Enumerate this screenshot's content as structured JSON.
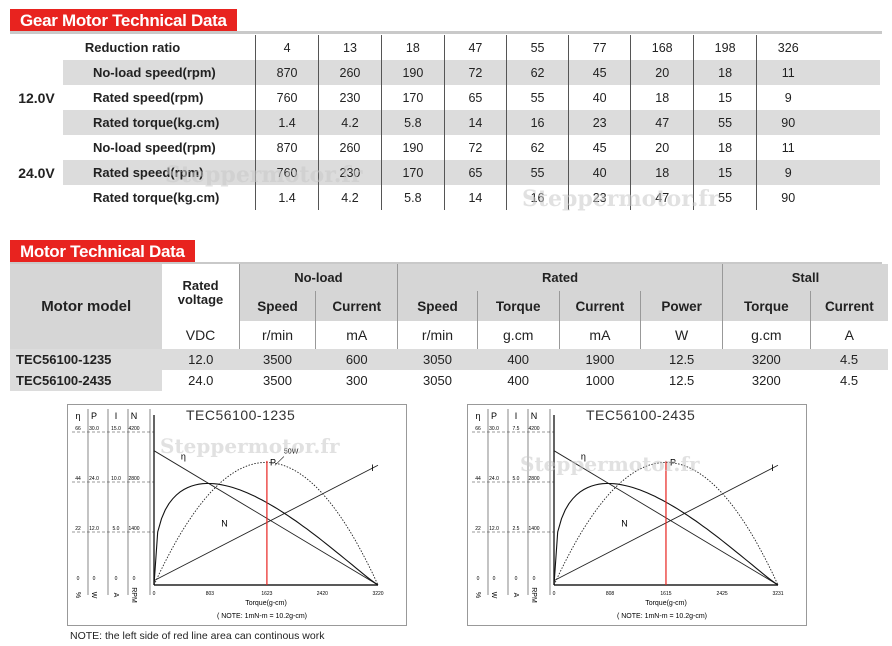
{
  "gear": {
    "title": "Gear Motor Technical Data",
    "ratio_label": "Reduction ratio",
    "ratios": [
      "4",
      "13",
      "18",
      "47",
      "55",
      "77",
      "168",
      "198",
      "326"
    ],
    "groups": [
      {
        "voltage": "12.0V",
        "rows": [
          {
            "label": "No-load speed(rpm)",
            "values": [
              "870",
              "260",
              "190",
              "72",
              "62",
              "45",
              "20",
              "18",
              "11"
            ]
          },
          {
            "label": "Rated speed(rpm)",
            "values": [
              "760",
              "230",
              "170",
              "65",
              "55",
              "40",
              "18",
              "15",
              "9"
            ]
          },
          {
            "label": "Rated torque(kg.cm)",
            "values": [
              "1.4",
              "4.2",
              "5.8",
              "14",
              "16",
              "23",
              "47",
              "55",
              "90"
            ]
          }
        ]
      },
      {
        "voltage": "24.0V",
        "rows": [
          {
            "label": "No-load speed(rpm)",
            "values": [
              "870",
              "260",
              "190",
              "72",
              "62",
              "45",
              "20",
              "18",
              "11"
            ]
          },
          {
            "label": "Rated speed(rpm)",
            "values": [
              "760",
              "230",
              "170",
              "65",
              "55",
              "40",
              "18",
              "15",
              "9"
            ]
          },
          {
            "label": "Rated torque(kg.cm)",
            "values": [
              "1.4",
              "4.2",
              "5.8",
              "14",
              "16",
              "23",
              "47",
              "55",
              "90"
            ]
          }
        ]
      }
    ]
  },
  "motor": {
    "title": "Motor Technical Data",
    "model_header": "Motor model",
    "rated_voltage_header": "Rated voltage",
    "groups": {
      "noload": "No-load",
      "rated": "Rated",
      "stall": "Stall"
    },
    "subheaders": [
      "Speed",
      "Current",
      "Speed",
      "Torque",
      "Current",
      "Power",
      "Torque",
      "Current"
    ],
    "units": [
      "VDC",
      "r/min",
      "mA",
      "r/min",
      "g.cm",
      "mA",
      "W",
      "g.cm",
      "A"
    ],
    "rows": [
      {
        "model": "TEC56100-1235",
        "values": [
          "12.0",
          "3500",
          "600",
          "3050",
          "400",
          "1900",
          "12.5",
          "3200",
          "4.5"
        ]
      },
      {
        "model": "TEC56100-2435",
        "values": [
          "24.0",
          "3500",
          "300",
          "3050",
          "400",
          "1000",
          "12.5",
          "3200",
          "4.5"
        ]
      }
    ]
  },
  "charts": [
    {
      "title": "TEC56100-1235",
      "col_headers": [
        "η",
        "P",
        "I",
        "N"
      ],
      "row_labels": [
        [
          "66",
          "30.0",
          "15.0",
          "4200"
        ],
        [
          "44",
          "24.0",
          "10.0",
          "2800"
        ],
        [
          "22",
          "12.0",
          "5.0",
          "1400"
        ],
        [
          "0",
          "0",
          "0",
          "0"
        ]
      ],
      "units": [
        "%",
        "W",
        "A",
        "RPM"
      ],
      "x_ticks": [
        "0",
        "803",
        "1623",
        "2420",
        "3220"
      ],
      "x_label": "Torque(g-cm)",
      "note": "( NOTE: 1mN-m = 10.2g-cm)",
      "curve_labels": {
        "eta": "η",
        "p": "P",
        "i": "I",
        "n": "N",
        "power": "50W"
      },
      "red_line_x": 1623,
      "x_max": 3220
    },
    {
      "title": "TEC56100-2435",
      "col_headers": [
        "η",
        "P",
        "I",
        "N"
      ],
      "row_labels": [
        [
          "66",
          "30.0",
          "7.5",
          "4200"
        ],
        [
          "44",
          "24.0",
          "5.0",
          "2800"
        ],
        [
          "22",
          "12.0",
          "2.5",
          "1400"
        ],
        [
          "0",
          "0",
          "0",
          "0"
        ]
      ],
      "units": [
        "%",
        "W",
        "A",
        "RPM"
      ],
      "x_ticks": [
        "0",
        "808",
        "1615",
        "2425",
        "3231"
      ],
      "x_label": "Torque(g-cm)",
      "note": "( NOTE: 1mN-m = 10.2g-cm)",
      "curve_labels": {
        "eta": "η",
        "p": "P",
        "i": "I",
        "n": "N",
        "power": ""
      },
      "red_line_x": 1615,
      "x_max": 3231
    }
  ],
  "footer_note": "NOTE: the left side of red line area can continous work",
  "watermark": "Steppermotor.fr",
  "colors": {
    "accent": "#e8231f",
    "row_shade": "#dcdcdc"
  }
}
